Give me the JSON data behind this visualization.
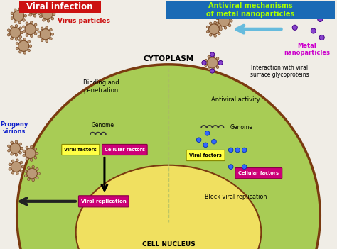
{
  "bg_color": "#f0ede6",
  "title": "Antiviral mechanisms\nof metal nanoparticles",
  "title_color": "#aaff00",
  "title_bg": "#1a6ab5",
  "viral_infection_text": "Viral infection",
  "viral_infection_color": "white",
  "viral_infection_bg": "#cc1111",
  "cytoplasm_color": "#a8cc55",
  "cytoplasm_dark_color": "#7aaa22",
  "nucleus_color": "#f0e060",
  "cell_border_color": "#7a3a10",
  "binding_text": "Binding and\npenetration",
  "antiviral_text": "Antiviral activity",
  "block_text": "Block viral replication",
  "cytoplasm_label": "CYTOPLASM",
  "nucleus_label": "CELL NUCLEUS",
  "virus_particles_label": "Virus particles",
  "virus_particles_color": "#cc1111",
  "metal_np_label": "Metal\nnanoparticles",
  "metal_np_color": "#cc00cc",
  "interaction_text": "Interaction with viral\nsurface glycoproteins",
  "progeny_text": "Progeny\nvirions",
  "progeny_color": "#1122cc",
  "viral_factors_color": "#ffff44",
  "cellular_factors_color": "#cc0077",
  "viral_replication_color": "#cc0077",
  "genome_text": "Genome",
  "viral_factors_text": "Viral factors",
  "cellular_factors_text": "Cellular factors",
  "viral_replication_text": "Viral replication",
  "arrow_color": "#66bbdd",
  "dark_arrow_color": "#222222"
}
